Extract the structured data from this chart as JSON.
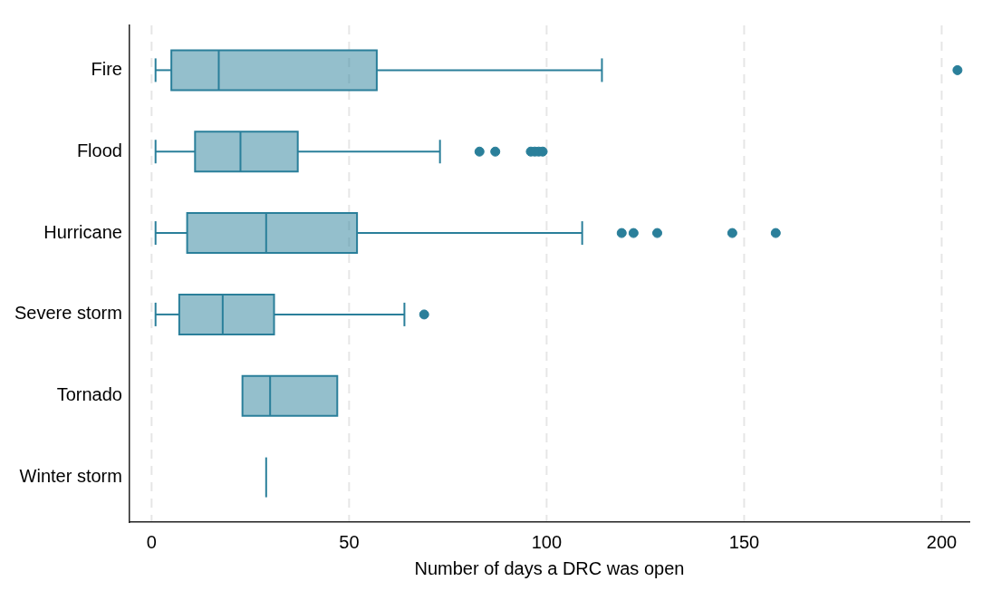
{
  "chart_data": {
    "type": "box",
    "orientation": "horizontal",
    "xlabel": "Number of days a DRC was open",
    "categories": [
      "Fire",
      "Flood",
      "Hurricane",
      "Severe storm",
      "Tornado",
      "Winter storm"
    ],
    "series": [
      {
        "color": "#2a7f9a",
        "boxes": [
          {
            "low": 1,
            "q1": 5,
            "median": 17,
            "q3": 57,
            "high": 114,
            "outliers": [
              204
            ]
          },
          {
            "low": 1,
            "q1": 11,
            "median": 22.5,
            "q3": 37,
            "high": 73,
            "outliers": [
              83,
              87,
              96,
              97,
              98,
              99
            ]
          },
          {
            "low": 1,
            "q1": 9,
            "median": 29,
            "q3": 52,
            "high": 109,
            "outliers": [
              119,
              122,
              128,
              147,
              158
            ]
          },
          {
            "low": 1,
            "q1": 7,
            "median": 18,
            "q3": 31,
            "high": 64,
            "outliers": [
              69
            ]
          },
          {
            "low": 23,
            "q1": 23,
            "median": 30,
            "q3": 47,
            "high": 47
          },
          {
            "low": 29,
            "q1": 29,
            "median": 29,
            "q3": 29,
            "high": 29
          }
        ]
      }
    ],
    "xlim": [
      -5.6,
      207
    ],
    "xticks": [
      0,
      50,
      100,
      150,
      200
    ],
    "grid": "x",
    "marker": "circle"
  }
}
